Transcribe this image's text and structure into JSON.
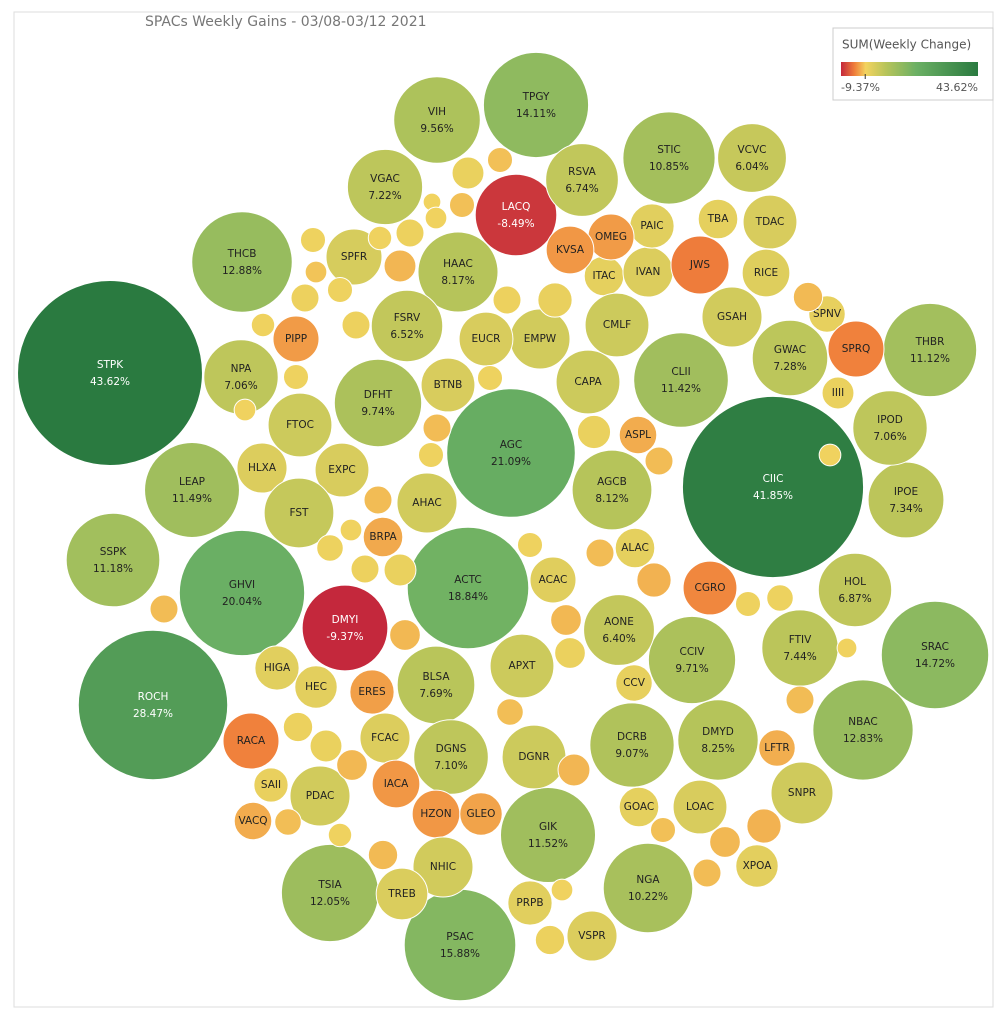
{
  "chart_data": {
    "type": "bubble",
    "title": "SPACs Weekly Gains - 03/08-03/12 2021",
    "legend": {
      "title": "SUM(Weekly Change)",
      "min": {
        "value": -9.37,
        "label": "-9.37%"
      },
      "max": {
        "value": 43.62,
        "label": "43.62%"
      }
    },
    "colors": [
      "#c4283c",
      "#f0803b",
      "#f3d35f",
      "#b6c45a",
      "#6bb064",
      "#2a7a40"
    ],
    "categories": [
      "STPK",
      "CIIC",
      "ROCH",
      "AGC",
      "GHVI",
      "ACTC",
      "PSAC",
      "SRAC",
      "TPGY",
      "THCB",
      "NBAC",
      "TSIA",
      "GIK",
      "LEAP",
      "CLII",
      "SSPK",
      "THBR",
      "STIC",
      "NGA",
      "DFHT",
      "CCIV",
      "VIH",
      "DCRB",
      "DMYI",
      "LACQ",
      "DMYD",
      "HAAC",
      "AGCB",
      "BLSA",
      "FTIV",
      "IPOE",
      "GWAC",
      "VGAC",
      "DGNS",
      "NPA",
      "IPOD",
      "HOL",
      "RSVA",
      "FSRV",
      "AONE",
      "VCVC",
      "SPFR",
      "ITAC",
      "IVAN",
      "PAIC",
      "TBA",
      "TDAC",
      "OMEG",
      "KVSA",
      "JWS",
      "RICE",
      "SPNV",
      "SPRQ",
      "IIII",
      "GSAH",
      "CMLF",
      "EMPW",
      "EUCR",
      "CAPA",
      "BTNB",
      "PIPP",
      "FTOC",
      "HLXA",
      "EXPC",
      "FST",
      "AHAC",
      "ASPL",
      "BRPA",
      "ALAC",
      "ACAC",
      "CGRO",
      "HIGA",
      "HEC",
      "ERES",
      "APXT",
      "CCV",
      "RACA",
      "FCAC",
      "DGNR",
      "LFTR",
      "SNPR",
      "SAII",
      "PDAC",
      "IACA",
      "GOAC",
      "LOAC",
      "VACQ",
      "HZON",
      "GLEO",
      "XPOA",
      "NHIC",
      "TREB",
      "PRPB",
      "VSPR",
      null,
      null,
      null,
      null,
      null,
      null,
      null,
      null,
      null,
      null,
      null,
      null,
      null,
      null,
      null,
      null,
      null,
      null,
      null,
      null,
      null,
      null,
      null,
      null,
      null,
      null,
      null,
      null,
      null,
      null,
      null,
      null,
      null,
      null,
      null,
      null,
      null,
      null,
      null,
      null,
      null,
      null,
      null,
      null,
      null,
      null,
      null,
      null,
      null,
      null,
      null,
      null,
      null,
      null,
      null
    ],
    "values": [
      43.62,
      41.85,
      28.47,
      21.09,
      20.04,
      18.84,
      15.88,
      14.72,
      14.11,
      12.88,
      12.83,
      12.05,
      11.52,
      11.49,
      11.42,
      11.18,
      11.12,
      10.85,
      10.22,
      9.74,
      9.71,
      9.56,
      9.07,
      -9.37,
      -8.49,
      8.25,
      8.17,
      8.12,
      7.69,
      7.44,
      7.34,
      7.28,
      7.22,
      7.1,
      7.06,
      7.06,
      6.87,
      6.74,
      6.52,
      6.4,
      6.04,
      4.0,
      2.0,
      3.2,
      2.5,
      2.0,
      3.7,
      -2.7,
      -2.9,
      -4.3,
      2.9,
      1.7,
      -4.0,
      1.3,
      4.6,
      5.2,
      4.6,
      3.7,
      5.2,
      3.7,
      -2.7,
      5.2,
      3.2,
      3.7,
      6.2,
      4.6,
      -1.8,
      -2.0,
      2.0,
      2.7,
      -3.7,
      2.5,
      2.3,
      -2.5,
      5.2,
      1.7,
      -4.0,
      3.2,
      5.2,
      -1.7,
      4.9,
      1.5,
      4.6,
      -2.9,
      2.0,
      3.7,
      -1.8,
      -2.9,
      -2.3,
      2.3,
      4.6,
      3.4,
      2.5,
      3.2,
      1.3,
      -0.8,
      -0.8,
      0.4,
      0.6,
      1.0,
      0.7,
      0.8,
      -1.3,
      -0.6,
      1.0,
      0.8,
      1.0,
      0.7,
      0.8,
      0.6,
      1.0,
      1.5,
      0.8,
      -1.0,
      0.8,
      -1.0,
      0.6,
      0.9,
      1.0,
      1.3,
      -1.2,
      -1.0,
      1.4,
      -1.0,
      -1.0,
      -1.5,
      -1.2,
      0.8,
      1.2,
      -0.9,
      -1.3,
      -0.8,
      -1.0,
      -1.2,
      -1.5,
      0.8,
      0.9,
      0.5,
      -1.0,
      0.7,
      -1.1,
      1.1,
      0.6,
      1.1,
      1.3,
      -1.2,
      -0.9,
      -1.1,
      0.6
    ],
    "value_labels": [
      "43.62%",
      "41.85%",
      "28.47%",
      "21.09%",
      "20.04%",
      "18.84%",
      "15.88%",
      "14.72%",
      "14.11%",
      "12.88%",
      "12.83%",
      "12.05%",
      "11.52%",
      "11.49%",
      "11.42%",
      "11.18%",
      "11.12%",
      "10.85%",
      "10.22%",
      "9.74%",
      "9.71%",
      "9.56%",
      "9.07%",
      "-9.37%",
      "-8.49%",
      "8.25%",
      "8.17%",
      "8.12%",
      "7.69%",
      "7.44%",
      "7.34%",
      "7.28%",
      "7.22%",
      "7.10%",
      "7.06%",
      "7.06%",
      "6.87%",
      "6.74%",
      "6.52%",
      "6.40%",
      "6.04%",
      null,
      null,
      null,
      null,
      null,
      null,
      null,
      null,
      null,
      null,
      null,
      null,
      null,
      null,
      null,
      null,
      null,
      null,
      null,
      null,
      null,
      null,
      null,
      null,
      null,
      null,
      null,
      null,
      null,
      null,
      null,
      null,
      null,
      null,
      null,
      null,
      null,
      null,
      null,
      null,
      null,
      null,
      null,
      null,
      null,
      null,
      null,
      null,
      null,
      null,
      null,
      null,
      null,
      null,
      null,
      null,
      null,
      null,
      null,
      null,
      null,
      null,
      null,
      null,
      null,
      null,
      null,
      null,
      null,
      null,
      null,
      null,
      null,
      null,
      null,
      null,
      null,
      null,
      null,
      null,
      null,
      null,
      null,
      null,
      null,
      null,
      null,
      null,
      null,
      null,
      null,
      null,
      null,
      null,
      null,
      null,
      null,
      null,
      null,
      null,
      null,
      null,
      null,
      null,
      null,
      null,
      null,
      null
    ]
  }
}
